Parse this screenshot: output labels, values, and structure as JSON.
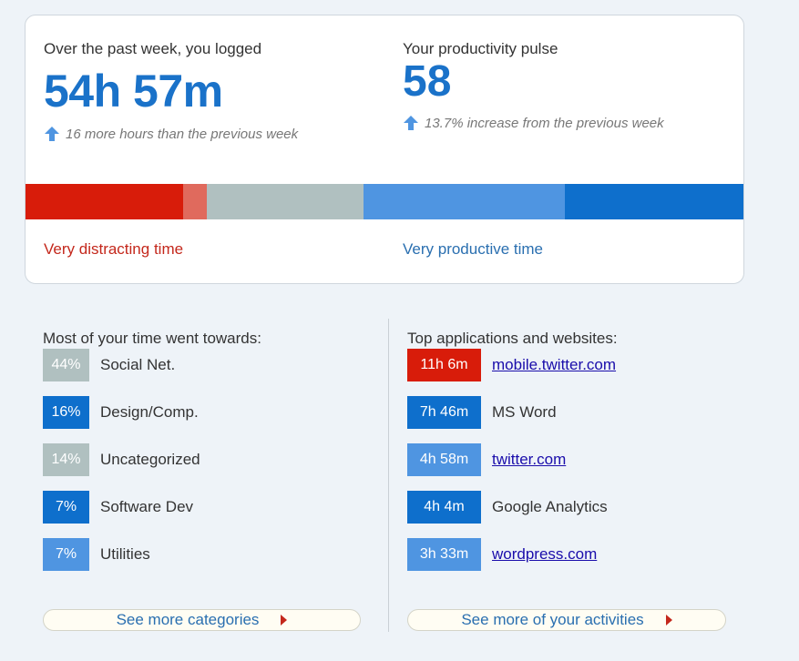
{
  "summary": {
    "logged_label": "Over the past week, you logged",
    "logged_value": "54h 57m",
    "logged_change": "16 more hours than the previous week",
    "pulse_label": "Your productivity pulse",
    "pulse_value": "58",
    "pulse_change": "13.7% increase from the previous week",
    "distracting_label": "Very distracting time",
    "productive_label": "Very productive time"
  },
  "pulse_bar": [
    {
      "name": "very-distracting",
      "fraction": 0.219,
      "color": "#d81c0a"
    },
    {
      "name": "distracting",
      "fraction": 0.033,
      "color": "#e06a5d"
    },
    {
      "name": "neutral",
      "fraction": 0.218,
      "color": "#b0c0c0"
    },
    {
      "name": "productive",
      "fraction": 0.28,
      "color": "#4f95e1"
    },
    {
      "name": "very-productive",
      "fraction": 0.25,
      "color": "#0e6fcc"
    }
  ],
  "categories": {
    "title": "Most of your time went towards:",
    "items": [
      {
        "percent": "44%",
        "label": "Social Net.",
        "color": "#b0c0c0"
      },
      {
        "percent": "16%",
        "label": "Design/Comp.",
        "color": "#0e6fcc"
      },
      {
        "percent": "14%",
        "label": "Uncategorized",
        "color": "#b0c0c0"
      },
      {
        "percent": "7%",
        "label": "Software Dev",
        "color": "#0e6fcc"
      },
      {
        "percent": "7%",
        "label": "Utilities",
        "color": "#4f95e1"
      }
    ],
    "more_label": "See more categories"
  },
  "activities": {
    "title": "Top applications and websites:",
    "items": [
      {
        "time": "11h 6m",
        "label": "mobile.twitter.com",
        "link": true,
        "color": "#d81c0a"
      },
      {
        "time": "7h 46m",
        "label": "MS Word",
        "link": false,
        "color": "#0e6fcc"
      },
      {
        "time": "4h 58m",
        "label": "twitter.com",
        "link": true,
        "color": "#4f95e1"
      },
      {
        "time": "4h 4m",
        "label": "Google Analytics",
        "link": false,
        "color": "#0e6fcc"
      },
      {
        "time": "3h 33m",
        "label": "wordpress.com",
        "link": true,
        "color": "#4f95e1"
      }
    ],
    "more_label": "See more of your activities"
  },
  "colors": {
    "accent": "#1a72c9",
    "distracting_text": "#c4281c",
    "productive_text": "#2a6fb0",
    "arrow": "#4f95e1"
  }
}
